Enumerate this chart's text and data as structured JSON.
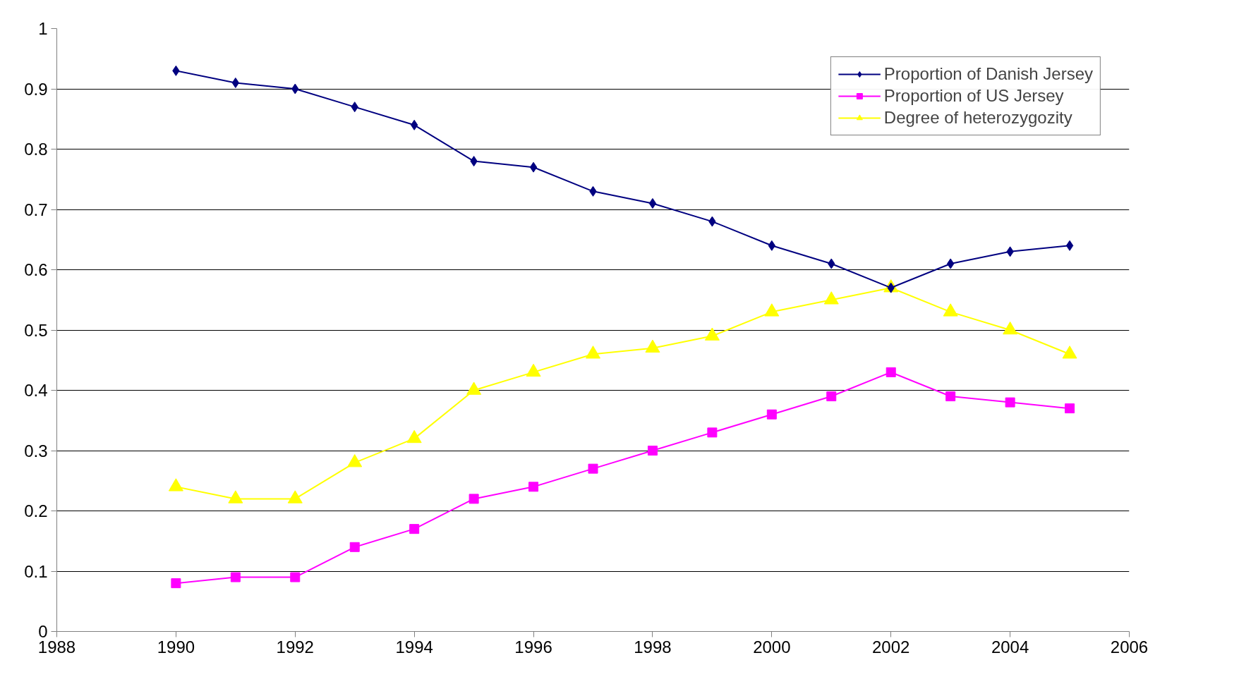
{
  "chart_data": {
    "type": "line",
    "x": [
      1990,
      1991,
      1992,
      1993,
      1994,
      1995,
      1996,
      1997,
      1998,
      1999,
      2000,
      2001,
      2002,
      2003,
      2004,
      2005
    ],
    "series": [
      {
        "name": "Proportion of Danish Jersey",
        "color": "#000080",
        "marker": "diamond",
        "values": [
          0.93,
          0.91,
          0.9,
          0.87,
          0.84,
          0.78,
          0.77,
          0.73,
          0.71,
          0.68,
          0.64,
          0.61,
          0.57,
          0.61,
          0.63,
          0.64
        ]
      },
      {
        "name": "Proportion of US Jersey",
        "color": "#ff00ff",
        "marker": "square",
        "values": [
          0.08,
          0.09,
          0.09,
          0.14,
          0.17,
          0.22,
          0.24,
          0.27,
          0.3,
          0.33,
          0.36,
          0.39,
          0.43,
          0.39,
          0.38,
          0.37
        ]
      },
      {
        "name": "Degree of heterozygozity",
        "color": "#ffff00",
        "marker": "triangle",
        "values": [
          0.24,
          0.22,
          0.22,
          0.28,
          0.32,
          0.4,
          0.43,
          0.46,
          0.47,
          0.49,
          0.53,
          0.55,
          0.57,
          0.53,
          0.5,
          0.46
        ]
      }
    ],
    "xlim": [
      1988,
      2006
    ],
    "xticks": [
      1988,
      1990,
      1992,
      1994,
      1996,
      1998,
      2000,
      2002,
      2004,
      2006
    ],
    "ylim": [
      0,
      1
    ],
    "yticks": [
      0,
      0.1,
      0.2,
      0.3,
      0.4,
      0.5,
      0.6,
      0.7,
      0.8,
      0.9,
      1
    ],
    "grid": "y",
    "legend": "top right",
    "line_style": "solid"
  }
}
